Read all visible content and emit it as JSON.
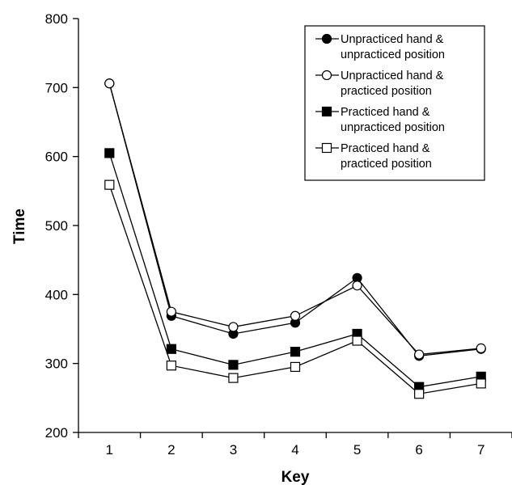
{
  "chart_data": {
    "type": "line",
    "title": "",
    "xlabel": "Key",
    "ylabel": "Time",
    "x": [
      1,
      2,
      3,
      4,
      5,
      6,
      7
    ],
    "xticks": [
      "1",
      "2",
      "3",
      "4",
      "5",
      "6",
      "7"
    ],
    "ylim": [
      200,
      800
    ],
    "yticks": [
      200,
      300,
      400,
      500,
      600,
      700,
      800
    ],
    "grid": false,
    "legend_position": "top-right",
    "series": [
      {
        "name": "Unpracticed hand & unpracticed position",
        "legend_lines": [
          "Unpracticed hand &",
          "unpracticed position"
        ],
        "marker": "circle",
        "filled": true,
        "values": [
          706,
          369,
          343,
          359,
          424,
          311,
          321
        ]
      },
      {
        "name": "Unpracticed hand & practiced position",
        "legend_lines": [
          "Unpracticed hand &",
          "practiced position"
        ],
        "marker": "circle",
        "filled": false,
        "values": [
          706,
          375,
          353,
          369,
          413,
          313,
          322
        ]
      },
      {
        "name": "Practiced hand & unpracticed position",
        "legend_lines": [
          "Practiced hand &",
          "unpracticed position"
        ],
        "marker": "square",
        "filled": true,
        "values": [
          605,
          321,
          298,
          317,
          343,
          266,
          281
        ]
      },
      {
        "name": "Practiced hand & practiced position",
        "legend_lines": [
          "Practiced hand &",
          "practiced position"
        ],
        "marker": "square",
        "filled": false,
        "values": [
          559,
          297,
          279,
          295,
          333,
          256,
          271
        ]
      }
    ]
  }
}
